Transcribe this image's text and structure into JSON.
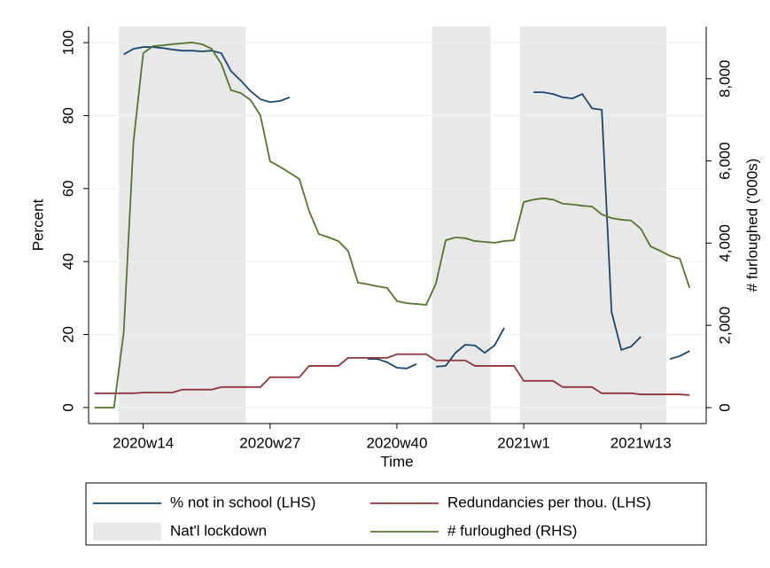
{
  "chart_data": {
    "type": "line",
    "x_label": "Time",
    "y_label": "Percent",
    "y2_label": "# furloughed ('000s)",
    "x": [
      3128,
      3129,
      3130,
      3131,
      3132,
      3133,
      3134,
      3135,
      3136,
      3137,
      3138,
      3139,
      3140,
      3141,
      3142,
      3143,
      3144,
      3145,
      3146,
      3147,
      3148,
      3149,
      3150,
      3151,
      3152,
      3153,
      3154,
      3155,
      3156,
      3157,
      3158,
      3159,
      3160,
      3161,
      3162,
      3163,
      3164,
      3165,
      3166,
      3167,
      3168,
      3169,
      3170,
      3171,
      3172,
      3173,
      3174,
      3175,
      3176,
      3177,
      3178,
      3179,
      3180,
      3181,
      3182,
      3183,
      3184,
      3185,
      3186,
      3187,
      3188,
      3189
    ],
    "xlim": [
      3127.4,
      3190.7
    ],
    "xticks": [
      {
        "value": 3133,
        "label": "2020w14"
      },
      {
        "value": 3146,
        "label": "2020w27"
      },
      {
        "value": 3159,
        "label": "2020w40"
      },
      {
        "value": 3172,
        "label": "2021w1"
      },
      {
        "value": 3184,
        "label": "2021w13"
      }
    ],
    "ylim": [
      -4.4,
      104.4
    ],
    "yticks": [
      0,
      20,
      40,
      60,
      80,
      100
    ],
    "y2lim": [
      -388,
      9267
    ],
    "y2ticks": [
      0,
      {
        "value": 2000,
        "label": "2,000"
      },
      {
        "value": 4000,
        "label": "4,000"
      },
      {
        "value": 6000,
        "label": "6,000"
      },
      {
        "value": 8000,
        "label": "8,000"
      }
    ],
    "grid": true,
    "legend": "bottom",
    "shading": {
      "name": "Nat'l lockdown",
      "color": "#e8e8e8",
      "ranges": [
        [
          3130.5,
          3143.5
        ],
        [
          3162.6,
          3168.6
        ],
        [
          3171.6,
          3186.6
        ]
      ]
    },
    "series": [
      {
        "name": "% not in school (LHS)",
        "color": "#1a476f",
        "axis": "y",
        "values": [
          null,
          null,
          null,
          96.8,
          98.3,
          98.8,
          98.8,
          98.5,
          98.1,
          97.8,
          97.8,
          97.6,
          97.8,
          97.1,
          92.2,
          89.6,
          86.7,
          84.5,
          83.7,
          84.0,
          85.0,
          null,
          null,
          null,
          null,
          null,
          null,
          null,
          13.3,
          13.3,
          12.4,
          10.9,
          10.7,
          11.9,
          null,
          11.2,
          11.4,
          15.0,
          17.2,
          17.0,
          15.0,
          17.0,
          21.8,
          null,
          null,
          86.4,
          86.4,
          85.9,
          85.0,
          84.7,
          85.9,
          82.0,
          81.6,
          26.2,
          15.8,
          16.7,
          19.4,
          null,
          null,
          13.3,
          14.1,
          15.5
        ]
      },
      {
        "name": "Redundancies per thou. (LHS)",
        "color": "#90353b",
        "axis": "y",
        "values": [
          3.9,
          3.9,
          3.9,
          3.9,
          3.9,
          4.1,
          4.1,
          4.1,
          4.1,
          4.9,
          4.9,
          4.9,
          4.9,
          5.6,
          5.6,
          5.6,
          5.6,
          5.6,
          8.3,
          8.3,
          8.3,
          8.3,
          11.4,
          11.4,
          11.4,
          11.4,
          13.6,
          13.6,
          13.6,
          13.6,
          13.6,
          14.6,
          14.6,
          14.6,
          14.6,
          12.9,
          12.9,
          12.9,
          12.9,
          11.4,
          11.4,
          11.4,
          11.4,
          11.4,
          7.3,
          7.3,
          7.3,
          7.3,
          5.6,
          5.6,
          5.6,
          5.6,
          3.9,
          3.9,
          3.9,
          3.9,
          3.6,
          3.6,
          3.6,
          3.6,
          3.6,
          3.4
        ]
      },
      {
        "name": "# furloughed (RHS)",
        "color": "#55752f",
        "axis": "y2",
        "values": [
          0,
          0,
          0,
          1830,
          6470,
          8620,
          8790,
          8810,
          8840,
          8860,
          8880,
          8840,
          8730,
          8360,
          7720,
          7650,
          7480,
          7110,
          5990,
          5860,
          5710,
          5560,
          4780,
          4220,
          4140,
          4050,
          3810,
          3040,
          3000,
          2950,
          2910,
          2590,
          2540,
          2520,
          2500,
          3020,
          4070,
          4140,
          4120,
          4050,
          4030,
          4010,
          4050,
          4070,
          5000,
          5060,
          5090,
          5060,
          4960,
          4940,
          4910,
          4890,
          4700,
          4610,
          4570,
          4550,
          4350,
          3920,
          3810,
          3690,
          3620,
          2910
        ]
      }
    ]
  }
}
